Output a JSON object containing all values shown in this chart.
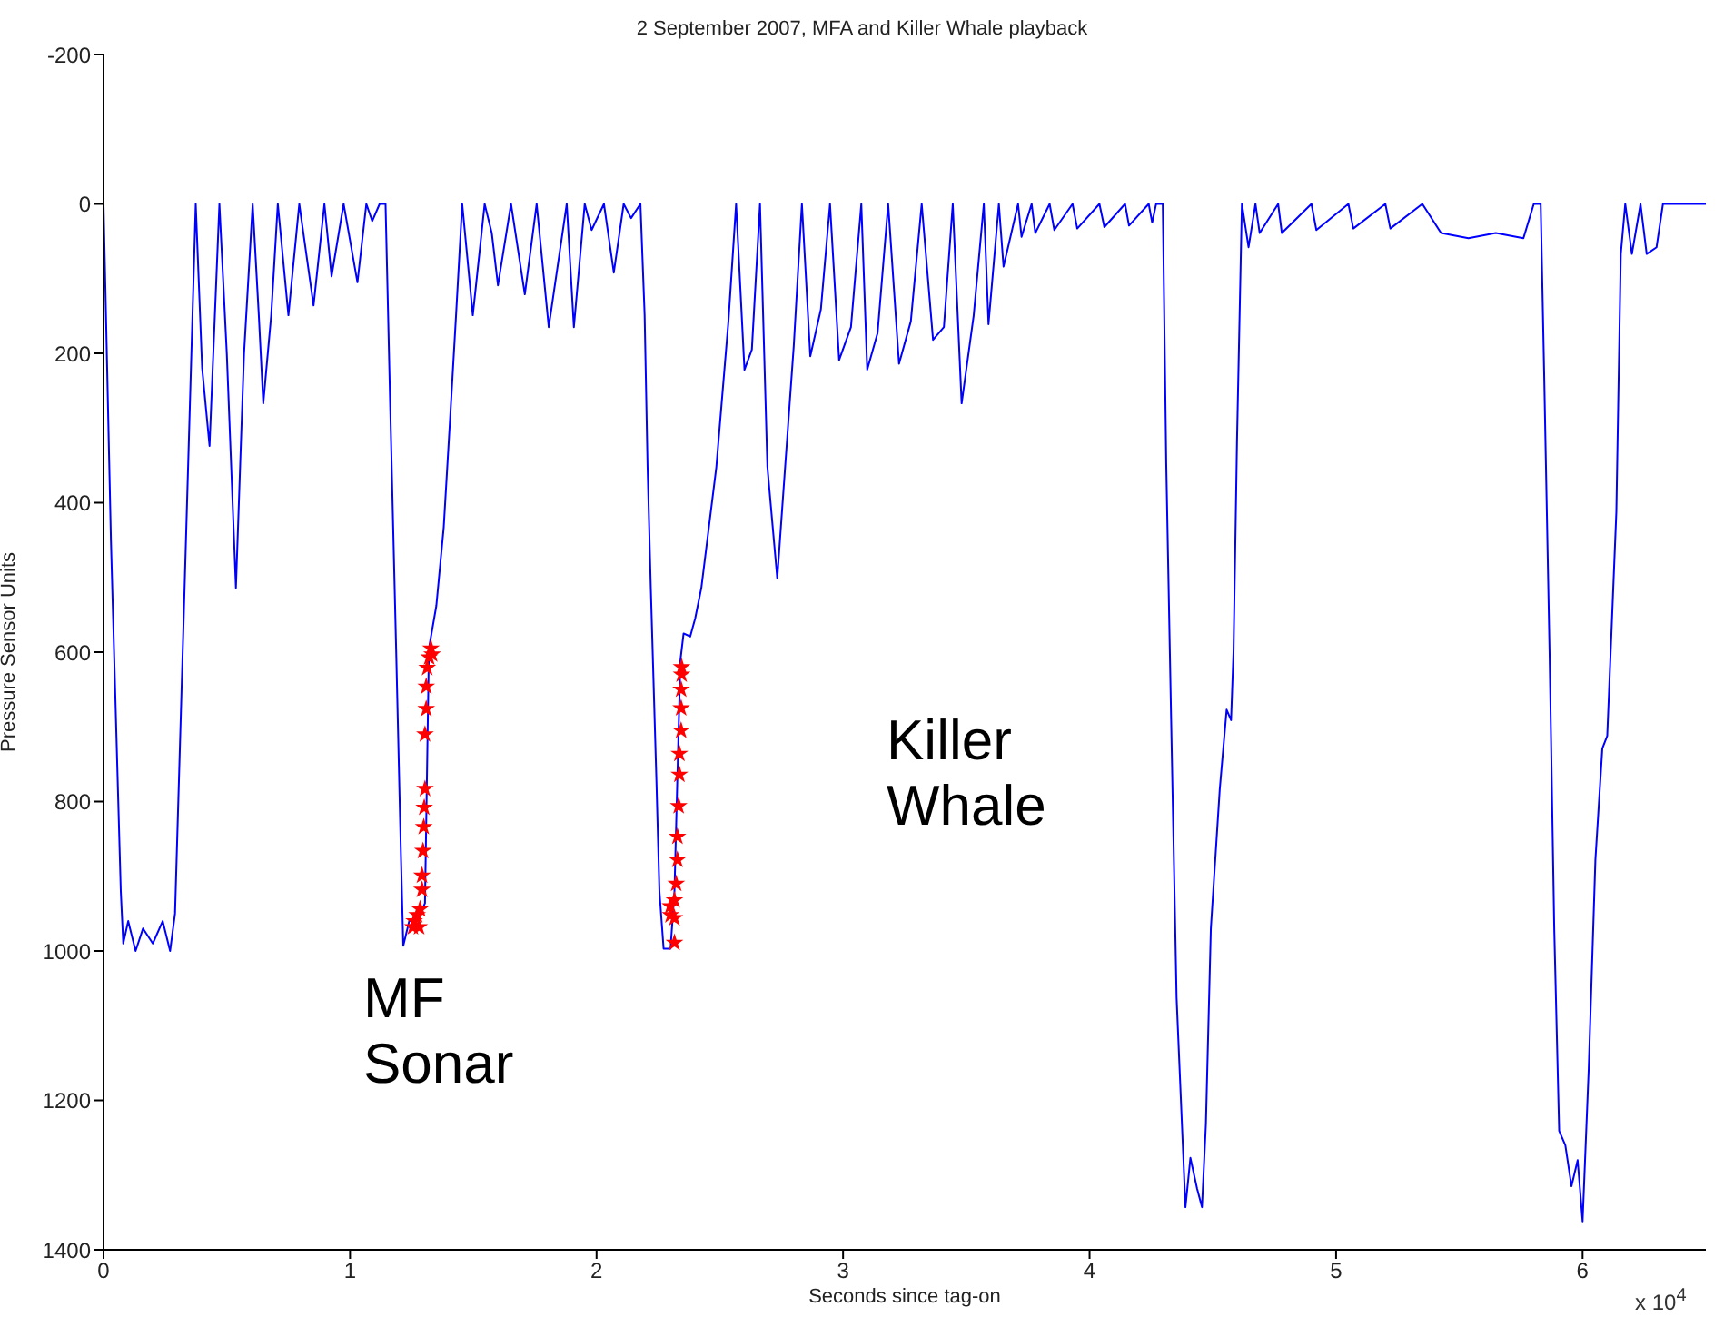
{
  "chart_data": {
    "type": "line",
    "title": "2 September 2007, MFA and Killer Whale playback",
    "xlabel": "Seconds since tag-on",
    "ylabel": "Pressure Sensor Units",
    "xlim": [
      0,
      6.5
    ],
    "xticks": [
      0,
      1,
      2,
      3,
      4,
      5,
      6
    ],
    "ylim": [
      1400,
      -200
    ],
    "yticks": [
      -200,
      0,
      200,
      400,
      600,
      800,
      1000,
      1200,
      1400
    ],
    "annotations": [
      "MF\nSonar",
      "Killer\nWhale",
      "x 10$^{4}$"
    ],
    "series": [
      {
        "color": "#0000ff",
        "x": [
          0,
          0.03,
          0.07,
          0.08,
          0.1,
          0.13,
          0.16,
          0.2,
          0.24,
          0.27,
          0.29,
          0.33,
          0.374,
          0.4,
          0.43,
          0.47,
          0.5,
          0.537,
          0.57,
          0.605,
          0.63,
          0.648,
          0.68,
          0.707,
          0.75,
          0.794,
          0.852,
          0.896,
          0.925,
          0.974,
          1.03,
          1.066,
          1.09,
          1.12,
          1.144,
          1.163,
          1.187,
          1.207,
          1.216,
          1.24,
          1.272,
          1.304,
          1.32,
          1.35,
          1.38,
          1.406,
          1.43,
          1.455,
          1.498,
          1.546,
          1.575,
          1.6,
          1.653,
          1.709,
          1.757,
          1.806,
          1.879,
          1.908,
          1.952,
          1.98,
          2.03,
          2.07,
          2.11,
          2.14,
          2.178,
          2.195,
          2.207,
          2.22,
          2.243,
          2.255,
          2.272,
          2.3,
          2.316,
          2.34,
          2.353,
          2.38,
          2.4,
          2.425,
          2.486,
          2.535,
          2.566,
          2.6,
          2.63,
          2.663,
          2.693,
          2.733,
          2.765,
          2.8,
          2.833,
          2.867,
          2.91,
          2.947,
          2.984,
          3.032,
          3.074,
          3.098,
          3.14,
          3.183,
          3.227,
          3.275,
          3.319,
          3.365,
          3.409,
          3.445,
          3.481,
          3.53,
          3.571,
          3.59,
          3.632,
          3.651,
          3.71,
          3.724,
          3.765,
          3.78,
          3.838,
          3.857,
          3.931,
          3.95,
          4.04,
          4.06,
          4.144,
          4.16,
          4.24,
          4.254,
          4.27,
          4.297,
          4.311,
          4.331,
          4.353,
          4.389,
          4.409,
          4.436,
          4.456,
          4.472,
          4.492,
          4.528,
          4.556,
          4.574,
          4.584,
          4.598,
          4.618,
          4.645,
          4.673,
          4.69,
          4.765,
          4.78,
          4.9,
          4.92,
          5.05,
          5.07,
          5.2,
          5.22,
          5.35,
          5.426,
          5.537,
          5.648,
          5.76,
          5.802,
          5.83,
          5.844,
          5.866,
          5.885,
          5.905,
          5.93,
          5.955,
          5.98,
          6.0,
          6.025,
          6.052,
          6.08,
          6.1,
          6.137,
          6.155,
          6.173,
          6.2,
          6.235,
          6.26,
          6.3,
          6.326,
          6.5
        ],
        "values": [
          0,
          450,
          920,
          990,
          960,
          1000,
          970,
          990,
          960,
          1000,
          950,
          500,
          0,
          220,
          324,
          0,
          200,
          514,
          200,
          0,
          150,
          267,
          150,
          0,
          149,
          0,
          136,
          0,
          97,
          0,
          105,
          0,
          23,
          0,
          0,
          271,
          596,
          879,
          993,
          960,
          960,
          936,
          595,
          538,
          433,
          287,
          149,
          0,
          149,
          0,
          39,
          109,
          0,
          121,
          0,
          165,
          0,
          165,
          0,
          35,
          0,
          92,
          0,
          19,
          0,
          149,
          352,
          514,
          774,
          920,
          997,
          997,
          920,
          611,
          575,
          579,
          555,
          514,
          352,
          157,
          0,
          222,
          195,
          0,
          352,
          501,
          352,
          190,
          0,
          204,
          141,
          0,
          209,
          165,
          0,
          222,
          173,
          0,
          214,
          157,
          0,
          182,
          165,
          0,
          267,
          149,
          0,
          161,
          0,
          84,
          0,
          44,
          0,
          39,
          0,
          35,
          0,
          33,
          0,
          31,
          0,
          29,
          0,
          25,
          0,
          0,
          347,
          691,
          1063,
          1343,
          1277,
          1318,
          1343,
          1231,
          970,
          784,
          677,
          691,
          599,
          319,
          0,
          58,
          0,
          39,
          0,
          39,
          0,
          35,
          0,
          33,
          0,
          33,
          0,
          39,
          46,
          39,
          46,
          0,
          0,
          226,
          599,
          970,
          1241,
          1260,
          1315,
          1280,
          1362,
          1157,
          878,
          729,
          712,
          412,
          67,
          0,
          67,
          0,
          67,
          58,
          0,
          0
        ]
      },
      {
        "type": "scatter",
        "color": "#ff0000",
        "marker": "star",
        "x": [
          1.328,
          1.333,
          1.321,
          1.313,
          1.309,
          1.309,
          1.304,
          1.304,
          1.301,
          1.299,
          1.296,
          1.292,
          1.292,
          1.284,
          1.272,
          1.26,
          1.255,
          1.28,
          2.345,
          2.345,
          2.343,
          2.343,
          2.343,
          2.336,
          2.336,
          2.333,
          2.328,
          2.328,
          2.323,
          2.316,
          2.299,
          2.3,
          2.316,
          2.316
        ],
        "values": [
          595,
          603,
          607,
          621,
          646,
          676,
          710,
          783,
          808,
          834,
          866,
          899,
          918,
          944,
          952,
          960,
          968,
          968,
          620,
          630,
          650,
          675,
          705,
          736,
          764,
          806,
          847,
          878,
          910,
          932,
          940,
          952,
          956,
          989
        ]
      }
    ]
  }
}
